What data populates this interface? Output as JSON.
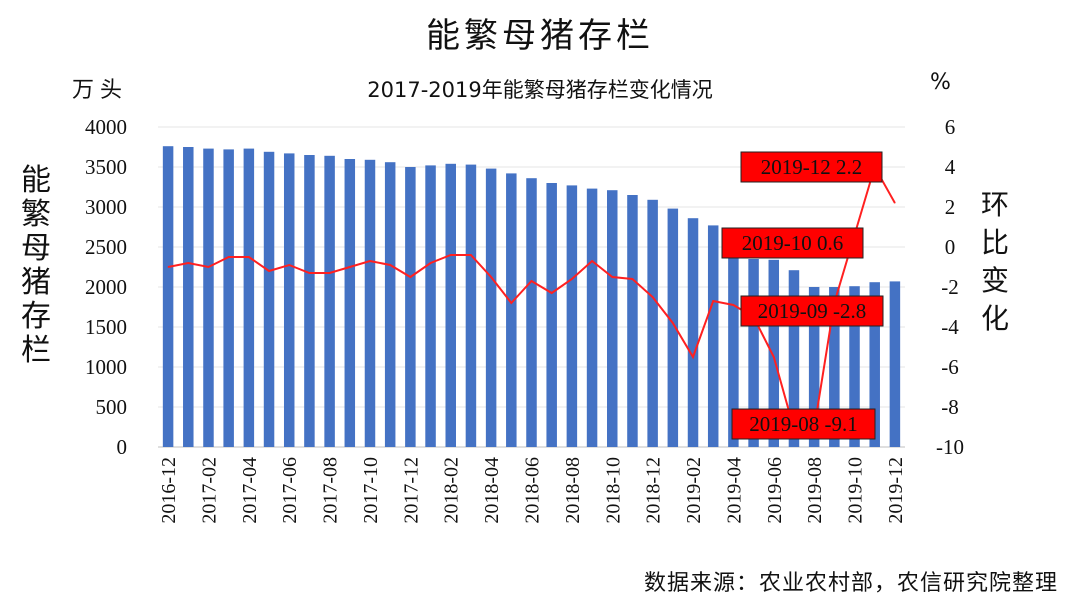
{
  "title": "能繁母猪存栏",
  "source": "数据来源：农业农村部，农信研究院整理",
  "chart_data": {
    "type": "bar+line",
    "title": "2017-2019年能繁母猪存栏变化情况",
    "left_unit": "万头",
    "right_unit": "%",
    "ylabel": "能繁母猪存栏",
    "y2label": "环比变化",
    "ylim": [
      0,
      4000
    ],
    "y2lim": [
      -10,
      6
    ],
    "y_ticks": [
      "0",
      "500",
      "1000",
      "1500",
      "2000",
      "2500",
      "3000",
      "3500",
      "4000"
    ],
    "y2_ticks": [
      "-10",
      "-8",
      "-6",
      "-4",
      "-2",
      "0",
      "2",
      "4",
      "6"
    ],
    "categories": [
      "2016-12",
      "2017-01",
      "2017-02",
      "2017-03",
      "2017-04",
      "2017-05",
      "2017-06",
      "2017-07",
      "2017-08",
      "2017-09",
      "2017-10",
      "2017-11",
      "2017-12",
      "2018-01",
      "2018-02",
      "2018-03",
      "2018-04",
      "2018-05",
      "2018-06",
      "2018-07",
      "2018-08",
      "2018-09",
      "2018-10",
      "2018-11",
      "2018-12",
      "2019-01",
      "2019-02",
      "2019-03",
      "2019-04",
      "2019-05",
      "2019-06",
      "2019-07",
      "2019-08",
      "2019-09",
      "2019-10",
      "2019-11",
      "2019-12"
    ],
    "x_tick_labels": [
      "2016-12",
      "2017-02",
      "2017-04",
      "2017-06",
      "2017-08",
      "2017-10",
      "2017-12",
      "2018-02",
      "2018-04",
      "2018-06",
      "2018-08",
      "2018-10",
      "2018-12",
      "2019-02",
      "2019-04",
      "2019-06",
      "2019-08",
      "2019-10",
      "2019-12"
    ],
    "series": [
      {
        "type": "bar",
        "axis": "left",
        "color": "#4472C4",
        "values": [
          3760,
          3750,
          3730,
          3720,
          3730,
          3690,
          3670,
          3650,
          3640,
          3600,
          3590,
          3560,
          3500,
          3520,
          3540,
          3530,
          3480,
          3420,
          3360,
          3300,
          3270,
          3230,
          3210,
          3150,
          3090,
          2980,
          2860,
          2770,
          2500,
          2350,
          2340,
          2210,
          2000,
          2000,
          2010,
          2060,
          2070
        ]
      },
      {
        "type": "line",
        "axis": "right",
        "color": "#FF2020",
        "values": [
          -1.0,
          -0.8,
          -1.0,
          -0.5,
          -0.5,
          -1.2,
          -0.9,
          -1.3,
          -1.3,
          -1.0,
          -0.7,
          -0.9,
          -1.5,
          -0.8,
          -0.4,
          -0.4,
          -1.5,
          -2.8,
          -1.7,
          -2.3,
          -1.6,
          -0.7,
          -1.5,
          -1.6,
          -2.5,
          -3.8,
          -5.5,
          -2.7,
          -2.9,
          -3.5,
          -5.5,
          -9.1,
          -9.1,
          -2.8,
          0.6,
          4.0,
          2.2
        ]
      }
    ],
    "annotations": [
      {
        "label": "2019-12  2.2",
        "index": 36,
        "y2": 2.2
      },
      {
        "label": "2019-10 0.6",
        "index": 34,
        "y2": 0.6
      },
      {
        "label": "2019-09 -2.8",
        "index": 33,
        "y2": -2.8
      },
      {
        "label": "2019-08 -9.1",
        "index": 32,
        "y2": -9.1
      }
    ]
  }
}
